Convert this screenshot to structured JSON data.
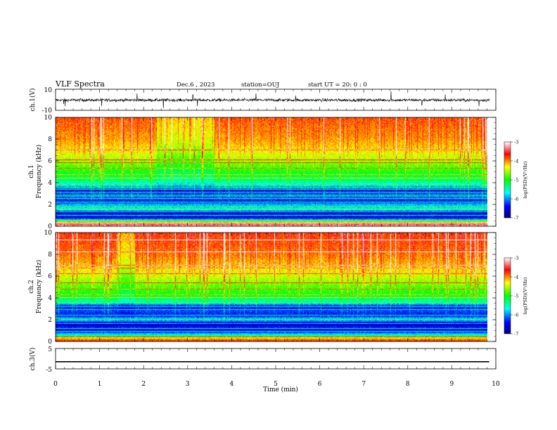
{
  "header": {
    "title": "VLF Spectra",
    "date": "Dec.6  , 2023",
    "station": "station=OUJ",
    "start_ut": "start  UT  =   20: 0  : 0"
  },
  "chart_data": {
    "type": "heatmap",
    "x_axis": {
      "label": "Time  (min)",
      "ticks": [
        0,
        1,
        2,
        3,
        4,
        5,
        6,
        7,
        8,
        9,
        10
      ],
      "range": [
        0,
        10
      ],
      "data_end_min": 9.85
    },
    "panels": [
      {
        "name": "waveform-ch1",
        "type": "line",
        "ylabel": "ch.1(V)",
        "ylim": [
          -10,
          10
        ],
        "ytick_labels": [
          "10",
          "-10"
        ],
        "baseline_v": -0.3,
        "noise_amplitude_v": 2.5,
        "spikes_v": [
          [
            0.18,
            -4
          ],
          [
            0.22,
            -6
          ],
          [
            1.05,
            -6
          ],
          [
            1.85,
            6
          ],
          [
            2.45,
            -8
          ],
          [
            3.12,
            5
          ],
          [
            3.22,
            -6
          ],
          [
            4.55,
            6
          ],
          [
            5.45,
            4
          ],
          [
            7.62,
            8
          ],
          [
            8.32,
            -5
          ],
          [
            8.85,
            5
          ],
          [
            9.62,
            -6
          ]
        ]
      },
      {
        "name": "spectrogram-ch1",
        "type": "heatmap",
        "ylabel": "ch.1\nFrequency  (kHz)",
        "ylim": [
          0,
          10
        ],
        "yticks": [
          0,
          2,
          4,
          6,
          8,
          10
        ],
        "colorbar": {
          "label": "log(PSD)(V²/Hz)",
          "range": [
            -7,
            -3
          ],
          "ticks": [
            "-3",
            "-4",
            "-5",
            "-6",
            "-7"
          ]
        },
        "profile_log_psd": [
          [
            0,
            -3.2
          ],
          [
            0.2,
            -3.4
          ],
          [
            0.35,
            -4.0
          ],
          [
            0.5,
            -5.4
          ],
          [
            0.8,
            -6.6
          ],
          [
            1.0,
            -6.2
          ],
          [
            1.3,
            -6.7
          ],
          [
            1.5,
            -5.6
          ],
          [
            2.0,
            -5.9
          ],
          [
            2.3,
            -6.4
          ],
          [
            2.8,
            -6.0
          ],
          [
            3.3,
            -6.5
          ],
          [
            3.6,
            -5.9
          ],
          [
            4.2,
            -5.3
          ],
          [
            5.0,
            -5.0
          ],
          [
            6.0,
            -4.6
          ],
          [
            7.0,
            -4.25
          ],
          [
            8.0,
            -4.05
          ],
          [
            9.0,
            -3.95
          ],
          [
            10.0,
            -3.85
          ]
        ],
        "horizontal_lines_khz": [
          0.3,
          0.55,
          1.05,
          1.35,
          1.55,
          1.85,
          2.25,
          2.55,
          2.85,
          3.15,
          3.45,
          3.55,
          3.85,
          4.45,
          4.75,
          5.35,
          5.85,
          6.15,
          7.05
        ],
        "quiet_intervals_min": [
          [
            2.3,
            3.6
          ]
        ]
      },
      {
        "name": "spectrogram-ch2",
        "type": "heatmap",
        "ylabel": "ch.2\nFrequency  (kHz)",
        "ylim": [
          0,
          10
        ],
        "yticks": [
          0,
          2,
          4,
          6,
          8,
          10
        ],
        "colorbar": {
          "label": "log(PSD)(V²/Hz)",
          "range": [
            -7,
            -3
          ],
          "ticks": [
            "-3",
            "-4",
            "-5",
            "-6",
            "-7"
          ]
        },
        "profile_log_psd": [
          [
            0,
            -3.6
          ],
          [
            0.3,
            -4.2
          ],
          [
            0.6,
            -5.6
          ],
          [
            1.0,
            -6.6
          ],
          [
            1.3,
            -6.3
          ],
          [
            1.6,
            -6.8
          ],
          [
            2.0,
            -5.7
          ],
          [
            2.4,
            -6.4
          ],
          [
            2.8,
            -6.2
          ],
          [
            3.2,
            -6.5
          ],
          [
            3.6,
            -5.5
          ],
          [
            4.2,
            -5.1
          ],
          [
            5.0,
            -4.8
          ],
          [
            6.0,
            -4.45
          ],
          [
            7.0,
            -4.15
          ],
          [
            8.0,
            -3.95
          ],
          [
            9.0,
            -3.85
          ],
          [
            10.0,
            -3.75
          ]
        ],
        "horizontal_lines_khz": [
          0.45,
          0.95,
          1.25,
          1.65,
          2.15,
          2.45,
          2.95,
          3.25,
          3.55,
          4.05,
          4.35,
          4.85,
          5.45,
          6.25,
          6.75,
          7.05,
          8.25,
          9.35
        ],
        "quiet_intervals_min": [
          [
            1.4,
            1.8
          ]
        ]
      },
      {
        "name": "waveform-ch3",
        "type": "line",
        "ylabel": "ch.3(V)",
        "ylim": [
          -5,
          5
        ],
        "ytick_labels": [
          "5",
          "-5"
        ],
        "baseline_v": -1.5,
        "noise_amplitude_v": 0
      }
    ]
  }
}
